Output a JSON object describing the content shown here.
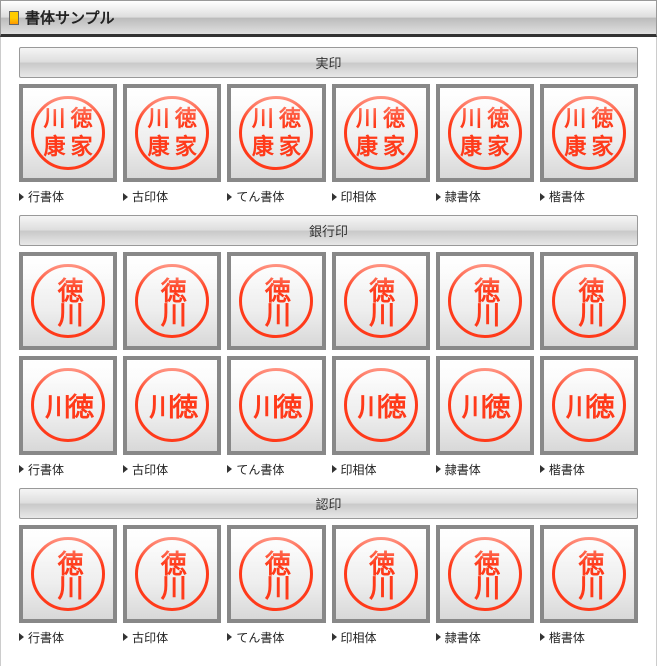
{
  "header": {
    "title": "書体サンプル"
  },
  "seal_color": "#ff3a1a",
  "border_color": "#888888",
  "background_gradient": [
    "#ffffff",
    "#d8d8d8"
  ],
  "font_labels": [
    "行書体",
    "古印体",
    "てん書体",
    "印相体",
    "隷書体",
    "楷書体"
  ],
  "sections": [
    {
      "title": "実印",
      "rows": [
        {
          "layout": "grid2x2",
          "chars": [
            "徳",
            "川",
            "家",
            "康"
          ],
          "show_labels": true
        }
      ]
    },
    {
      "title": "銀行印",
      "rows": [
        {
          "layout": "vertical",
          "chars": [
            "徳",
            "川"
          ],
          "show_labels": false
        },
        {
          "layout": "horizontal",
          "chars": [
            "川",
            "徳"
          ],
          "show_labels": true
        }
      ]
    },
    {
      "title": "認印",
      "rows": [
        {
          "layout": "vertical",
          "chars": [
            "徳",
            "川"
          ],
          "show_labels": true
        }
      ]
    }
  ]
}
